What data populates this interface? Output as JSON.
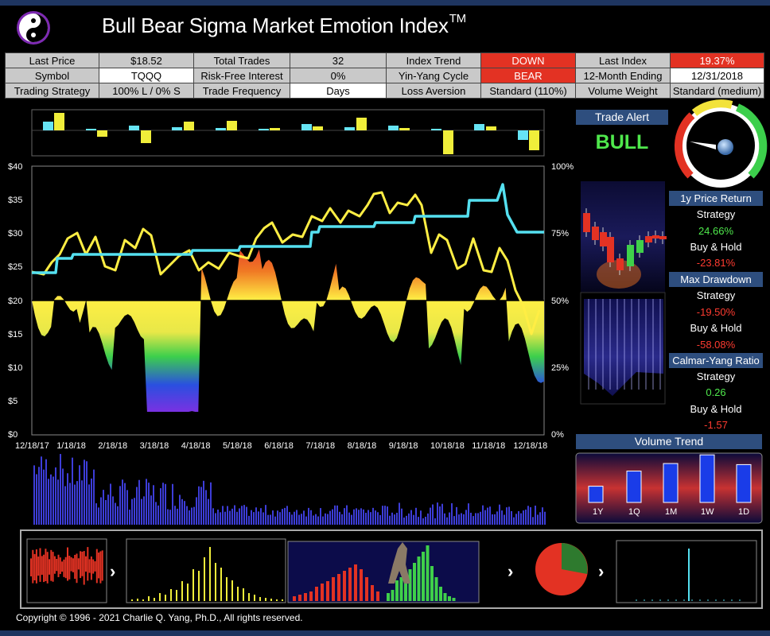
{
  "header": {
    "title": "Bull Bear Sigma Market Emotion Index",
    "tm": "TM"
  },
  "info_rows": [
    [
      {
        "label": "Last Price"
      },
      {
        "value": "$18.52"
      },
      {
        "label": "Total Trades"
      },
      {
        "value": "32"
      },
      {
        "label": "Index Trend"
      },
      {
        "value": "DOWN",
        "style": "red"
      },
      {
        "label": "Last Index"
      },
      {
        "value": "19.37%",
        "style": "red"
      }
    ],
    [
      {
        "label": "Symbol"
      },
      {
        "value": "TQQQ",
        "style": "white"
      },
      {
        "label": "Risk-Free Interest"
      },
      {
        "value": "0%"
      },
      {
        "label": "Yin-Yang Cycle"
      },
      {
        "value": "BEAR",
        "style": "red"
      },
      {
        "label": "12-Month Ending"
      },
      {
        "value": "12/31/2018",
        "style": "white"
      }
    ],
    [
      {
        "label": "Trading Strategy"
      },
      {
        "value": "100% L / 0% S"
      },
      {
        "label": "Trade Frequency"
      },
      {
        "value": "Days",
        "style": "white"
      },
      {
        "label": "Loss Aversion"
      },
      {
        "value": "Standard (110%)"
      },
      {
        "label": "Volume Weight"
      },
      {
        "value": "Standard (medium)"
      }
    ]
  ],
  "main_chart": {
    "left_axis": [
      "$40",
      "$35",
      "$30",
      "$25",
      "$20",
      "$15",
      "$10",
      "$5",
      "$0"
    ],
    "right_axis": [
      "100%",
      "75%",
      "50%",
      "25%",
      "0%"
    ],
    "x_axis": [
      "12/18/17",
      "1/18/18",
      "2/18/18",
      "3/18/18",
      "4/18/18",
      "5/18/18",
      "6/18/18",
      "7/18/18",
      "8/18/18",
      "9/18/18",
      "10/18/18",
      "11/18/18",
      "12/18/18"
    ]
  },
  "trade_alert": {
    "header": "Trade Alert",
    "signal": "BULL"
  },
  "stats": [
    {
      "header": "1y Price Return",
      "strategy_label": "Strategy",
      "strategy_value": "24.66%",
      "bh_label": "Buy & Hold",
      "bh_value": "-23.81%"
    },
    {
      "header": "Max Drawdown",
      "strategy_label": "Strategy",
      "strategy_value": "-19.50%",
      "bh_label": "Buy & Hold",
      "bh_value": "-58.08%"
    },
    {
      "header": "Calmar-Yang Ratio",
      "strategy_label": "Strategy",
      "strategy_value": "0.26",
      "bh_label": "Buy & Hold",
      "bh_value": "-1.57"
    }
  ],
  "volume_trend": {
    "header": "Volume Trend",
    "labels": [
      "1Y",
      "1Q",
      "1M",
      "1W",
      "1D"
    ],
    "values": [
      0.3,
      0.58,
      0.72,
      0.88,
      0.7
    ]
  },
  "colors": {
    "accent_blue": "#2e4e7e",
    "bull_green": "#4fe84c",
    "bear_red": "#e33223",
    "line_yellow": "#ffee44",
    "line_cyan": "#55e0f0"
  },
  "footer": {
    "copyright": "Copyright © 1996 - 2021 Charlie Q. Yang, Ph.D., All rights reserved."
  }
}
